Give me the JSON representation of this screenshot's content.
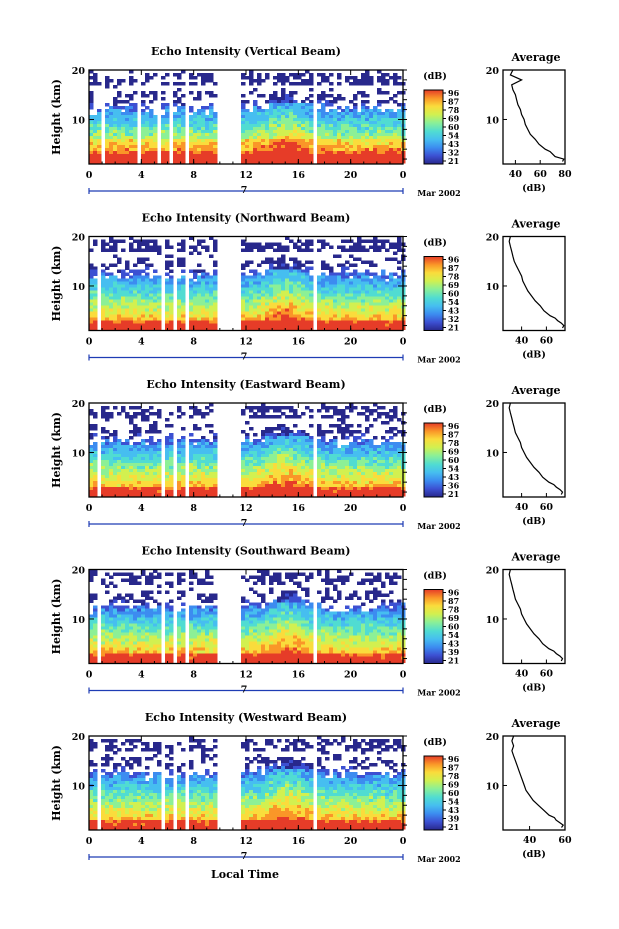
{
  "figure": {
    "xlabel": "Local Time",
    "date_label": "Mar 2002",
    "day_label": "7",
    "ylabel": "Height (km)",
    "colorbar_unit": "(dB)",
    "profile_title": "Average",
    "profile_xlabel": "(dB)"
  },
  "colors": {
    "scale": [
      "#28288c",
      "#3c50d2",
      "#3c8cf0",
      "#46bef0",
      "#50dcd2",
      "#8cf096",
      "#d2f050",
      "#fadc3c",
      "#fa9628",
      "#e63c28"
    ],
    "blank": "#ffffff"
  },
  "chart_data": [
    {
      "type": "heatmap",
      "title": "Echo Intensity (Vertical Beam)",
      "x_ticks": [
        "0",
        "4",
        "8",
        "12",
        "16",
        "20",
        "0"
      ],
      "xlim": [
        0,
        24
      ],
      "y_ticks": [
        "20",
        "10"
      ],
      "ylim": [
        1,
        20
      ],
      "colorbar_ticks": [
        "96",
        "87",
        "78",
        "69",
        "60",
        "54",
        "43",
        "32",
        "21"
      ],
      "data_gaps_hours": [
        [
          1.0,
          1.3
        ],
        [
          3.7,
          4.0
        ],
        [
          5.1,
          5.4
        ],
        [
          6.2,
          6.5
        ],
        [
          7.3,
          7.6
        ],
        [
          9.6,
          11.6
        ],
        [
          16.9,
          17.2
        ]
      ],
      "profile": {
        "title": "Average",
        "xlabel": "(dB)",
        "x_ticks": [
          "40",
          "60",
          "80"
        ],
        "xlim": [
          30,
          80
        ],
        "y_ticks": [
          "20",
          "10"
        ],
        "height_km": [
          1.5,
          2,
          2.5,
          3,
          3.5,
          4,
          5,
          6,
          7,
          8,
          9,
          10,
          11,
          12,
          13,
          14,
          15,
          16,
          17,
          18,
          19,
          20
        ],
        "intensity_db": [
          78,
          79,
          72,
          70,
          68,
          64,
          59,
          56,
          52,
          50,
          48,
          47,
          45,
          44,
          42,
          41,
          40,
          38,
          37,
          45,
          36,
          38
        ]
      }
    },
    {
      "type": "heatmap",
      "title": "Echo Intensity (Northward Beam)",
      "x_ticks": [
        "0",
        "4",
        "8",
        "12",
        "16",
        "20",
        "0"
      ],
      "xlim": [
        0,
        24
      ],
      "y_ticks": [
        "20",
        "10"
      ],
      "ylim": [
        1,
        20
      ],
      "colorbar_ticks": [
        "96",
        "87",
        "78",
        "69",
        "60",
        "54",
        "43",
        "32",
        "21"
      ],
      "data_gaps_hours": [
        [
          0.6,
          0.9
        ],
        [
          5.4,
          5.7
        ],
        [
          6.3,
          6.6
        ],
        [
          7.4,
          7.7
        ],
        [
          9.6,
          11.6
        ],
        [
          16.9,
          17.2
        ]
      ],
      "profile": {
        "title": "Average",
        "xlabel": "(dB)",
        "x_ticks": [
          "40",
          "60"
        ],
        "xlim": [
          25,
          75
        ],
        "y_ticks": [
          "20",
          "10"
        ],
        "height_km": [
          1.5,
          2,
          2.5,
          3,
          3.5,
          4,
          5,
          6,
          7,
          8,
          9,
          10,
          11,
          12,
          13,
          14,
          15,
          16,
          17,
          18,
          19,
          20
        ],
        "intensity_db": [
          73,
          74,
          72,
          69,
          67,
          63,
          58,
          55,
          51,
          48,
          45,
          43,
          41,
          40,
          38,
          36,
          34,
          33,
          32,
          31,
          30,
          31
        ]
      }
    },
    {
      "type": "heatmap",
      "title": "Echo Intensity (Eastward Beam)",
      "x_ticks": [
        "0",
        "4",
        "8",
        "12",
        "16",
        "20",
        "0"
      ],
      "xlim": [
        0,
        24
      ],
      "y_ticks": [
        "20",
        "10"
      ],
      "ylim": [
        1,
        20
      ],
      "colorbar_ticks": [
        "96",
        "87",
        "78",
        "69",
        "60",
        "54",
        "43",
        "36",
        "21"
      ],
      "data_gaps_hours": [
        [
          0.6,
          0.9
        ],
        [
          5.4,
          5.7
        ],
        [
          6.3,
          6.6
        ],
        [
          7.4,
          7.7
        ],
        [
          9.6,
          11.6
        ],
        [
          16.9,
          17.2
        ]
      ],
      "profile": {
        "title": "Average",
        "xlabel": "(dB)",
        "x_ticks": [
          "40",
          "60"
        ],
        "xlim": [
          25,
          75
        ],
        "y_ticks": [
          "20",
          "10"
        ],
        "height_km": [
          1.5,
          2,
          2.5,
          3,
          3.5,
          4,
          5,
          6,
          7,
          8,
          9,
          10,
          11,
          12,
          13,
          14,
          15,
          16,
          17,
          18,
          19,
          20
        ],
        "intensity_db": [
          72,
          73,
          71,
          68,
          66,
          62,
          57,
          54,
          50,
          47,
          44,
          42,
          40,
          39,
          37,
          35,
          34,
          33,
          32,
          31,
          30,
          31
        ]
      }
    },
    {
      "type": "heatmap",
      "title": "Echo Intensity (Southward Beam)",
      "x_ticks": [
        "0",
        "4",
        "8",
        "12",
        "16",
        "20",
        "0"
      ],
      "xlim": [
        0,
        24
      ],
      "y_ticks": [
        "20",
        "10"
      ],
      "ylim": [
        1,
        20
      ],
      "colorbar_ticks": [
        "96",
        "87",
        "78",
        "69",
        "60",
        "54",
        "43",
        "39",
        "21"
      ],
      "data_gaps_hours": [
        [
          0.6,
          0.9
        ],
        [
          5.4,
          5.7
        ],
        [
          6.3,
          6.6
        ],
        [
          7.4,
          7.7
        ],
        [
          9.6,
          11.6
        ],
        [
          16.9,
          17.2
        ]
      ],
      "profile": {
        "title": "Average",
        "xlabel": "(dB)",
        "x_ticks": [
          "40",
          "60"
        ],
        "xlim": [
          25,
          75
        ],
        "y_ticks": [
          "20",
          "10"
        ],
        "height_km": [
          1.5,
          2,
          2.5,
          3,
          3.5,
          4,
          5,
          6,
          7,
          8,
          9,
          10,
          11,
          12,
          13,
          14,
          15,
          16,
          17,
          18,
          19,
          20
        ],
        "intensity_db": [
          72,
          73,
          71,
          68,
          66,
          62,
          57,
          54,
          50,
          47,
          44,
          42,
          40,
          39,
          37,
          35,
          34,
          33,
          32,
          31,
          30,
          31
        ]
      }
    },
    {
      "type": "heatmap",
      "title": "Echo Intensity (Westward Beam)",
      "x_ticks": [
        "0",
        "4",
        "8",
        "12",
        "16",
        "20",
        "0"
      ],
      "xlim": [
        0,
        24
      ],
      "y_ticks": [
        "20",
        "10"
      ],
      "ylim": [
        1,
        20
      ],
      "colorbar_ticks": [
        "96",
        "87",
        "78",
        "69",
        "60",
        "54",
        "43",
        "39",
        "21"
      ],
      "data_gaps_hours": [
        [
          0.6,
          0.9
        ],
        [
          5.4,
          5.7
        ],
        [
          6.3,
          6.6
        ],
        [
          7.4,
          7.7
        ],
        [
          9.6,
          11.6
        ],
        [
          16.9,
          17.2
        ]
      ],
      "profile": {
        "title": "Average",
        "xlabel": "(dB)",
        "x_ticks": [
          "40",
          "60"
        ],
        "xlim": [
          25,
          60
        ],
        "y_ticks": [
          "20",
          "10"
        ],
        "height_km": [
          1.5,
          2,
          2.5,
          3,
          3.5,
          4,
          5,
          6,
          7,
          8,
          9,
          10,
          11,
          12,
          13,
          14,
          15,
          16,
          17,
          18,
          19,
          20
        ],
        "intensity_db": [
          58,
          59,
          57,
          55,
          54,
          51,
          48,
          45,
          42,
          40,
          38,
          37,
          36,
          35,
          34,
          33,
          32,
          31,
          30,
          31,
          30,
          31
        ]
      }
    }
  ]
}
